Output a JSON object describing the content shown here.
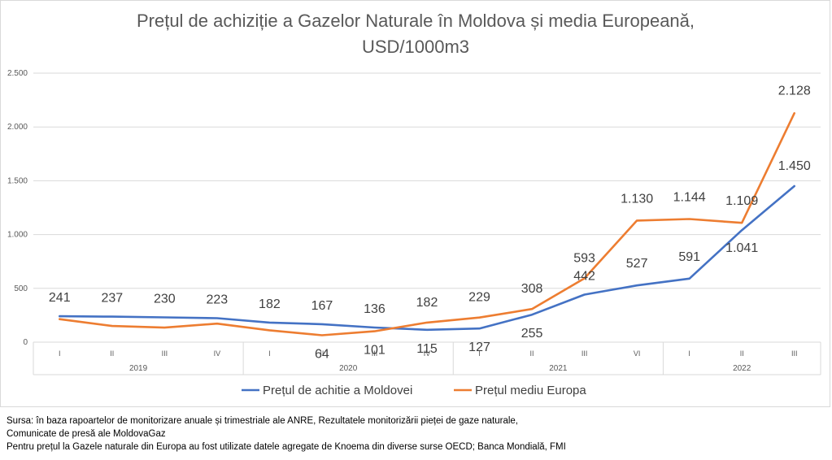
{
  "chart_data": {
    "type": "line",
    "title_line1": "Prețul de achiziție a Gazelor Naturale în Moldova și media Europeană,",
    "title_line2": "USD/1000m3",
    "ylim": [
      0,
      2500
    ],
    "yticks": [
      {
        "value": 0,
        "label": "0"
      },
      {
        "value": 500,
        "label": "500"
      },
      {
        "value": 1000,
        "label": "1.000"
      },
      {
        "value": 1500,
        "label": "1.500"
      },
      {
        "value": 2000,
        "label": "2.000"
      },
      {
        "value": 2500,
        "label": "2.500"
      }
    ],
    "categories": [
      "I",
      "II",
      "III",
      "IV",
      "I",
      "II",
      "III",
      "IV",
      "I",
      "II",
      "III",
      "VI",
      "I",
      "II",
      "III"
    ],
    "year_groups": [
      {
        "label": "2019",
        "count": 4
      },
      {
        "label": "2020",
        "count": 4
      },
      {
        "label": "2021",
        "count": 4
      },
      {
        "label": "2022",
        "count": 3
      }
    ],
    "series": [
      {
        "name": "Prețul de achitie a  Moldovei",
        "color": "#4472c4",
        "values": [
          241,
          237,
          230,
          223,
          182,
          167,
          136,
          115,
          127,
          255,
          442,
          527,
          591,
          1041,
          1450
        ],
        "labels": [
          "241",
          "237",
          "230",
          "223",
          "182",
          "167",
          "136",
          "115",
          "127",
          "255",
          "442",
          "527",
          "591",
          "1.041",
          "1.450"
        ]
      },
      {
        "name": "Prețul mediu Europa",
        "color": "#ed7d31",
        "values": [
          214,
          150,
          135,
          172,
          110,
          64,
          101,
          182,
          229,
          308,
          593,
          1130,
          1144,
          1109,
          2128
        ],
        "labels": [
          "",
          "",
          "",
          "",
          "",
          "64",
          "101",
          "182",
          "229",
          "308",
          "593",
          "1.130",
          "1.144",
          "1.109",
          "2.128"
        ]
      }
    ],
    "legend_position": "bottom"
  },
  "source_notes": [
    "Sursa: în baza rapoartelor de monitorizare anuale și trimestriale ale ANRE, Rezultatele monitorizării pieței de gaze naturale,",
    "Comunicate de presă ale MoldovaGaz",
    "Pentru prețul la Gazele naturale din Europa au fost utilizate datele agregate de Knoema din diverse surse OECD; Banca Mondială, FMI"
  ]
}
